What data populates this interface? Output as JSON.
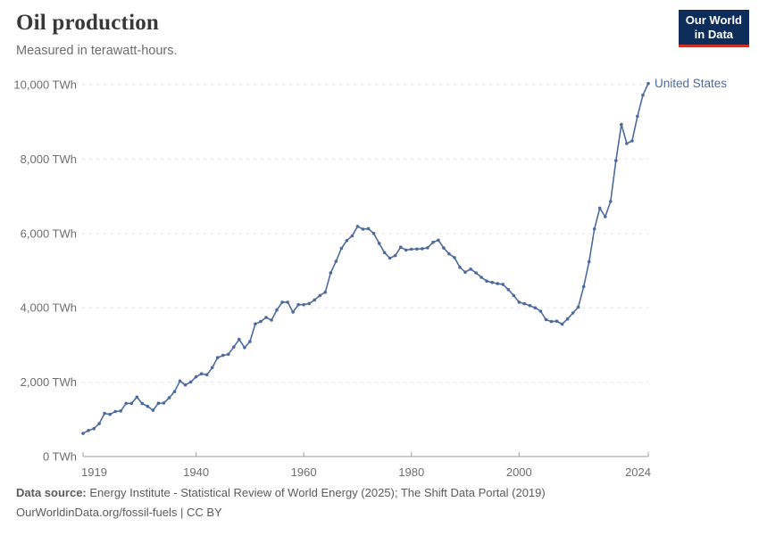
{
  "header": {
    "title": "Oil production",
    "subtitle": "Measured in terawatt-hours.",
    "logo": {
      "line1": "Our World",
      "line2": "in Data",
      "bg_color": "#0d2e5a",
      "accent_color": "#c9302c"
    }
  },
  "chart_data": {
    "type": "line",
    "title": "Oil production",
    "unit": "TWh",
    "xlabel": "",
    "ylabel": "",
    "xlim": [
      1919,
      2024
    ],
    "ylim": [
      0,
      10000
    ],
    "grid": "horizontal-dashed",
    "legend_position": "end-of-line-label",
    "xticks": [
      1919,
      1940,
      1960,
      1980,
      2000,
      2024
    ],
    "yticks": [
      0,
      2000,
      4000,
      6000,
      8000,
      10000
    ],
    "ytick_labels": [
      "0 TWh",
      "2,000 TWh",
      "4,000 TWh",
      "6,000 TWh",
      "8,000 TWh",
      "10,000 TWh"
    ],
    "series": [
      {
        "name": "United States",
        "color": "#4c6a9c",
        "x": [
          1919,
          1920,
          1921,
          1922,
          1923,
          1924,
          1925,
          1926,
          1927,
          1928,
          1929,
          1930,
          1931,
          1932,
          1933,
          1934,
          1935,
          1936,
          1937,
          1938,
          1939,
          1940,
          1941,
          1942,
          1943,
          1944,
          1945,
          1946,
          1947,
          1948,
          1949,
          1950,
          1951,
          1952,
          1953,
          1954,
          1955,
          1956,
          1957,
          1958,
          1959,
          1960,
          1961,
          1962,
          1963,
          1964,
          1965,
          1966,
          1967,
          1968,
          1969,
          1970,
          1971,
          1972,
          1973,
          1974,
          1975,
          1976,
          1977,
          1978,
          1979,
          1980,
          1981,
          1982,
          1983,
          1984,
          1985,
          1986,
          1987,
          1988,
          1989,
          1990,
          1991,
          1992,
          1993,
          1994,
          1995,
          1996,
          1997,
          1998,
          1999,
          2000,
          2001,
          2002,
          2003,
          2004,
          2005,
          2006,
          2007,
          2008,
          2009,
          2010,
          2011,
          2012,
          2013,
          2014,
          2015,
          2016,
          2017,
          2018,
          2019,
          2020,
          2021,
          2022,
          2023,
          2024
        ],
        "values": [
          620,
          700,
          750,
          885,
          1160,
          1135,
          1210,
          1225,
          1430,
          1430,
          1600,
          1425,
          1350,
          1245,
          1435,
          1440,
          1580,
          1745,
          2030,
          1925,
          2005,
          2145,
          2225,
          2200,
          2390,
          2660,
          2720,
          2750,
          2945,
          3150,
          2930,
          3090,
          3565,
          3630,
          3740,
          3670,
          3940,
          4150,
          4150,
          3885,
          4085,
          4085,
          4115,
          4210,
          4330,
          4420,
          4940,
          5250,
          5600,
          5810,
          5935,
          6190,
          6115,
          6130,
          6000,
          5735,
          5485,
          5335,
          5405,
          5630,
          5555,
          5575,
          5580,
          5590,
          5615,
          5760,
          5820,
          5610,
          5450,
          5350,
          5090,
          4960,
          5040,
          4940,
          4820,
          4720,
          4680,
          4650,
          4630,
          4490,
          4330,
          4150,
          4110,
          4060,
          4000,
          3910,
          3680,
          3630,
          3640,
          3560,
          3700,
          3860,
          4020,
          4570,
          5240,
          6120,
          6680,
          6450,
          6860,
          7960,
          8930,
          8420,
          8490,
          9150,
          9720,
          10030
        ]
      }
    ]
  },
  "footer": {
    "data_source_label": "Data source:",
    "data_source_text": " Energy Institute - Statistical Review of World Energy (2025); The Shift Data Portal (2019)",
    "url_text": "OurWorldinData.org/fossil-fuels",
    "license_text": " | CC BY"
  }
}
